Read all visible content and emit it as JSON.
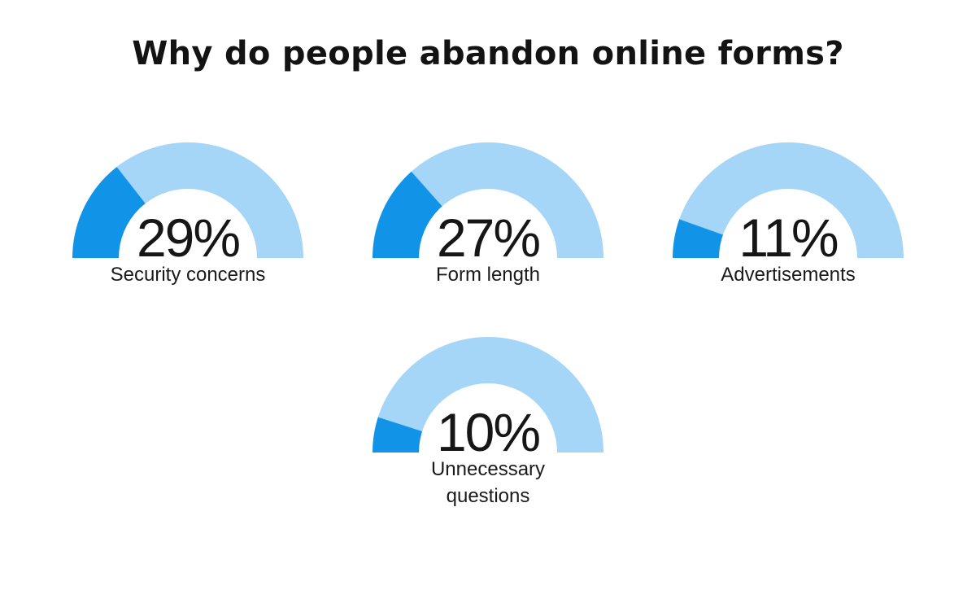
{
  "page": {
    "background": "#ffffff"
  },
  "title": {
    "text": "Why do people abandon online forms?"
  },
  "colors": {
    "fill": "#1193e8",
    "track": "#a5d6f7",
    "ink": "#131313"
  },
  "chart_data": {
    "type": "gauge",
    "title": "Why do people abandon online forms?",
    "unit": "percent",
    "range": [
      0,
      100
    ],
    "arc_style": "semicircle donut, 180deg span, filled clockwise starting at left end",
    "fill_color": "#1193e8",
    "track_color": "#a5d6f7",
    "legend": "none",
    "layout": "three gauges in top row, one centered below",
    "gauges": [
      {
        "label": "Security concerns",
        "value": 29,
        "display": "29%"
      },
      {
        "label": "Form length",
        "value": 27,
        "display": "27%"
      },
      {
        "label": "Advertisements",
        "value": 11,
        "display": "11%"
      },
      {
        "label": "Unnecessary questions",
        "value": 10,
        "display": "10%"
      }
    ]
  }
}
